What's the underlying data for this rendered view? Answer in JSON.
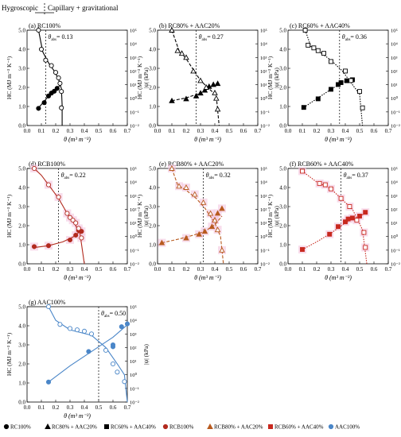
{
  "header": {
    "left": "Hygroscopic",
    "right": "Capillary + gravitational"
  },
  "common": {
    "xlabel": "θ (m³ m⁻³)",
    "ylabel_left": "HC (MJ m⁻³ K⁻¹)",
    "ylabel_right": "|ψ| (kPa)",
    "x_ticks": [
      "0.0",
      "0.1",
      "0.2",
      "0.3",
      "0.4",
      "0.5",
      "0.6",
      "0.7"
    ],
    "y_ticks": [
      "0.0",
      "1.0",
      "2.0",
      "3.0",
      "4.0",
      "5.0"
    ],
    "right_ticks": [
      "10⁻²",
      "10⁻¹",
      "10⁰",
      "10¹",
      "10²",
      "10³",
      "10⁴",
      "10⁵"
    ]
  },
  "legend": {
    "items": [
      {
        "label": "RC100%",
        "marker": "circle",
        "color": "#000000"
      },
      {
        "label": "RC80% + AAC20%",
        "marker": "triangle",
        "color": "#000000"
      },
      {
        "label": "RC60% + AAC40%",
        "marker": "square",
        "color": "#000000"
      },
      {
        "label": "RCB100%",
        "marker": "circle",
        "color": "#b22a1e"
      },
      {
        "label": "RCB80% + AAC20%",
        "marker": "triangle",
        "color": "#b85a1f"
      },
      {
        "label": "RCB60% + AAC40%",
        "marker": "square",
        "color": "#c8281e"
      },
      {
        "label": "AAC100%",
        "marker": "circle",
        "color": "#4a86c8"
      }
    ]
  },
  "chart_data": [
    {
      "id": "a",
      "title": "(a) RC100%",
      "type": "scatter",
      "threshold_label": "θ",
      "threshold_sub": "abs",
      "threshold_value": "= 0.13",
      "threshold": 0.13,
      "marker": "circle",
      "color": "#000000",
      "fill": "#ffffff",
      "line": "solid",
      "shade": false,
      "xlim": [
        0,
        0.7
      ],
      "ylim": [
        0,
        5
      ],
      "y2log": [
        -2,
        5
      ],
      "hc": {
        "x": [
          0.08,
          0.12,
          0.15,
          0.17,
          0.19,
          0.21
        ],
        "y": [
          0.9,
          1.2,
          1.55,
          1.7,
          1.8,
          1.95
        ]
      },
      "hc_curve": {
        "x": [
          0.07,
          0.1,
          0.14,
          0.17,
          0.2,
          0.23
        ],
        "y": [
          0.85,
          1.1,
          1.45,
          1.7,
          1.9,
          2.1
        ]
      },
      "psi": {
        "x": [
          0.08,
          0.1,
          0.13,
          0.17,
          0.2,
          0.22,
          0.23,
          0.24,
          0.24
        ],
        "logy": [
          5.0,
          3.6,
          2.8,
          2.4,
          1.9,
          1.5,
          1.1,
          0.5,
          -0.7
        ]
      },
      "psi_curve": {
        "x": [
          0.08,
          0.11,
          0.15,
          0.19,
          0.22,
          0.24,
          0.245,
          0.245
        ],
        "logy": [
          5.0,
          3.4,
          2.6,
          2.0,
          1.4,
          0.7,
          -0.5,
          -2.0
        ]
      }
    },
    {
      "id": "b",
      "title": "(b) RC80% + AAC20%",
      "type": "scatter",
      "threshold_label": "θ",
      "threshold_sub": "abs",
      "threshold_value": "= 0.27",
      "threshold": 0.27,
      "marker": "triangle",
      "color": "#000000",
      "fill": "#ffffff",
      "line": "dashed",
      "shade": false,
      "xlim": [
        0,
        0.7
      ],
      "ylim": [
        0,
        5
      ],
      "y2log": [
        -2,
        5
      ],
      "hc": {
        "x": [
          0.1,
          0.2,
          0.27,
          0.3,
          0.33,
          0.36,
          0.39,
          0.42
        ],
        "y": [
          1.3,
          1.4,
          1.55,
          1.7,
          1.85,
          2.05,
          2.15,
          2.2
        ]
      },
      "hc_curve": {
        "x": [
          0.1,
          0.2,
          0.3,
          0.36,
          0.42
        ],
        "y": [
          1.3,
          1.45,
          1.7,
          1.95,
          2.25
        ]
      },
      "psi": {
        "x": [
          0.1,
          0.14,
          0.17,
          0.2,
          0.25,
          0.3,
          0.34,
          0.4,
          0.41,
          0.42
        ],
        "logy": [
          5.0,
          3.5,
          3.3,
          3.0,
          2.0,
          1.3,
          0.8,
          0.4,
          0.0,
          -0.8
        ]
      },
      "psi_curve": {
        "x": [
          0.1,
          0.15,
          0.2,
          0.25,
          0.3,
          0.36,
          0.41,
          0.43
        ],
        "logy": [
          5.0,
          3.5,
          2.9,
          2.1,
          1.3,
          0.7,
          0.2,
          -2.0
        ]
      }
    },
    {
      "id": "c",
      "title": "(c) RC60% + AAC40%",
      "type": "scatter",
      "threshold_label": "θ",
      "threshold_sub": "abs",
      "threshold_value": "= 0.36",
      "threshold": 0.36,
      "marker": "square",
      "color": "#000000",
      "fill": "#ffffff",
      "line": "dotted",
      "shade": false,
      "xlim": [
        0,
        0.7
      ],
      "ylim": [
        0,
        5
      ],
      "y2log": [
        -2,
        5
      ],
      "hc": {
        "x": [
          0.11,
          0.21,
          0.3,
          0.35,
          0.37,
          0.41,
          0.45
        ],
        "y": [
          0.95,
          1.4,
          1.9,
          2.15,
          2.25,
          2.35,
          2.4
        ]
      },
      "hc_curve": {
        "x": [
          0.11,
          0.2,
          0.3,
          0.38,
          0.45
        ],
        "y": [
          0.95,
          1.4,
          1.9,
          2.25,
          2.45
        ]
      },
      "psi": {
        "x": [
          0.12,
          0.14,
          0.18,
          0.21,
          0.25,
          0.3,
          0.4,
          0.44,
          0.5,
          0.52
        ],
        "logy": [
          5.0,
          3.9,
          3.7,
          3.5,
          3.3,
          2.7,
          2.0,
          1.3,
          0.5,
          -0.7
        ]
      },
      "psi_curve": {
        "x": [
          0.12,
          0.16,
          0.22,
          0.3,
          0.38,
          0.45,
          0.5,
          0.52
        ],
        "logy": [
          5.0,
          3.8,
          3.4,
          2.8,
          2.0,
          1.0,
          0.3,
          -2.0
        ]
      }
    },
    {
      "id": "d",
      "title": "(d) RCB100%",
      "type": "scatter",
      "threshold_label": "θ",
      "threshold_sub": "abs",
      "threshold_value": "= 0.22",
      "threshold": 0.22,
      "marker": "circle",
      "color": "#b22a1e",
      "fill": "#ffffff",
      "line": "solid",
      "shade": true,
      "xlim": [
        0,
        0.7
      ],
      "ylim": [
        0,
        5
      ],
      "y2log": [
        -2,
        5
      ],
      "hc": {
        "x": [
          0.05,
          0.15,
          0.3,
          0.34,
          0.36,
          0.38
        ],
        "y": [
          0.9,
          0.95,
          1.25,
          1.5,
          1.75,
          1.7
        ]
      },
      "hc_curve": {
        "x": [
          0.05,
          0.15,
          0.25,
          0.32,
          0.38
        ],
        "y": [
          0.85,
          0.95,
          1.15,
          1.4,
          1.75
        ]
      },
      "psi": {
        "x": [
          0.05,
          0.15,
          0.22,
          0.28,
          0.3,
          0.32,
          0.34,
          0.36,
          0.38
        ],
        "logy": [
          5.0,
          3.8,
          2.9,
          1.7,
          1.4,
          1.2,
          1.0,
          0.6,
          -0.1
        ]
      },
      "psi_curve": {
        "x": [
          0.05,
          0.1,
          0.15,
          0.22,
          0.28,
          0.33,
          0.37,
          0.4
        ],
        "logy": [
          5.0,
          4.5,
          3.8,
          2.8,
          1.7,
          1.0,
          0.2,
          -2.0
        ]
      }
    },
    {
      "id": "e",
      "title": "(e) RCB80% + AAC20%",
      "type": "scatter",
      "threshold_label": "θ",
      "threshold_sub": "abs",
      "threshold_value": "= 0.32",
      "threshold": 0.32,
      "marker": "triangle",
      "color": "#b85a1f",
      "fill": "#ffffff",
      "line": "dashed",
      "shade": true,
      "xlim": [
        0,
        0.7
      ],
      "ylim": [
        0,
        5
      ],
      "y2log": [
        -2,
        5
      ],
      "hc": {
        "x": [
          0.03,
          0.2,
          0.29,
          0.33,
          0.38,
          0.4,
          0.42,
          0.45
        ],
        "y": [
          1.1,
          1.35,
          1.55,
          1.7,
          1.95,
          2.3,
          2.65,
          2.9
        ]
      },
      "hc_curve": {
        "x": [
          0.03,
          0.15,
          0.25,
          0.33,
          0.4,
          0.45
        ],
        "y": [
          1.1,
          1.3,
          1.5,
          1.7,
          2.05,
          2.5
        ]
      },
      "psi": {
        "x": [
          0.1,
          0.15,
          0.2,
          0.26,
          0.32,
          0.37,
          0.4,
          0.42,
          0.45
        ],
        "logy": [
          5.0,
          3.7,
          3.6,
          3.1,
          2.5,
          1.7,
          1.2,
          0.5,
          -1.0
        ]
      },
      "psi_curve": {
        "x": [
          0.1,
          0.14,
          0.2,
          0.27,
          0.33,
          0.4,
          0.44,
          0.46
        ],
        "logy": [
          5.0,
          3.8,
          3.4,
          2.8,
          2.1,
          1.0,
          0.0,
          -2.0
        ]
      }
    },
    {
      "id": "f",
      "title": "(f) RCB60% + AAC40%",
      "type": "scatter",
      "threshold_label": "θ",
      "threshold_sub": "abs",
      "threshold_value": "= 0.37",
      "threshold": 0.37,
      "marker": "square",
      "color": "#c8281e",
      "fill": "#ffffff",
      "line": "dotted",
      "shade": true,
      "xlim": [
        0,
        0.7
      ],
      "ylim": [
        0,
        5
      ],
      "y2log": [
        -2,
        5
      ],
      "hc": {
        "x": [
          0.1,
          0.29,
          0.35,
          0.4,
          0.42,
          0.45,
          0.5,
          0.54
        ],
        "y": [
          0.75,
          1.55,
          1.95,
          2.2,
          2.35,
          2.4,
          2.5,
          2.7
        ]
      },
      "hc_curve": {
        "x": [
          0.1,
          0.2,
          0.3,
          0.4,
          0.5,
          0.54
        ],
        "y": [
          0.75,
          1.15,
          1.6,
          2.15,
          2.5,
          2.65
        ]
      },
      "psi": {
        "x": [
          0.1,
          0.22,
          0.26,
          0.3,
          0.37,
          0.43,
          0.48,
          0.53,
          0.54
        ],
        "logy": [
          4.8,
          3.9,
          3.8,
          3.5,
          2.8,
          2.2,
          1.2,
          0.3,
          -0.8
        ]
      },
      "psi_curve": {
        "x": [
          0.1,
          0.2,
          0.3,
          0.38,
          0.45,
          0.52,
          0.55
        ],
        "logy": [
          4.8,
          4.0,
          3.5,
          2.7,
          2.0,
          0.5,
          -2.0
        ]
      }
    },
    {
      "id": "g",
      "title": "(g) AAC100%",
      "type": "scatter",
      "threshold_label": "θ",
      "threshold_sub": "abs",
      "threshold_value": "= 0.50",
      "threshold": 0.5,
      "marker": "circle",
      "color": "#4a86c8",
      "fill": "#ffffff",
      "line": "solid",
      "shade": false,
      "xlim": [
        0,
        0.7
      ],
      "ylim": [
        0,
        5
      ],
      "y2log": [
        -2,
        5
      ],
      "hc": {
        "x": [
          0.15,
          0.43,
          0.6,
          0.6,
          0.66,
          0.7
        ],
        "y": [
          1.05,
          2.65,
          2.9,
          3.0,
          3.95,
          4.1
        ]
      },
      "hc_curve": {
        "x": [
          0.15,
          0.3,
          0.45,
          0.6,
          0.7
        ],
        "y": [
          1.05,
          1.9,
          2.65,
          3.4,
          4.05
        ]
      },
      "psi": {
        "x": [
          0.15,
          0.23,
          0.3,
          0.35,
          0.4,
          0.45,
          0.55,
          0.6,
          0.63,
          0.68
        ],
        "logy": [
          5.0,
          3.7,
          3.4,
          3.3,
          3.2,
          3.0,
          1.8,
          0.8,
          0.2,
          -0.5
        ]
      },
      "psi_curve": {
        "x": [
          0.15,
          0.2,
          0.3,
          0.45,
          0.55,
          0.63,
          0.68,
          0.7
        ],
        "logy": [
          5.0,
          4.0,
          3.3,
          2.9,
          2.0,
          0.8,
          0.0,
          -2.0
        ]
      }
    }
  ]
}
